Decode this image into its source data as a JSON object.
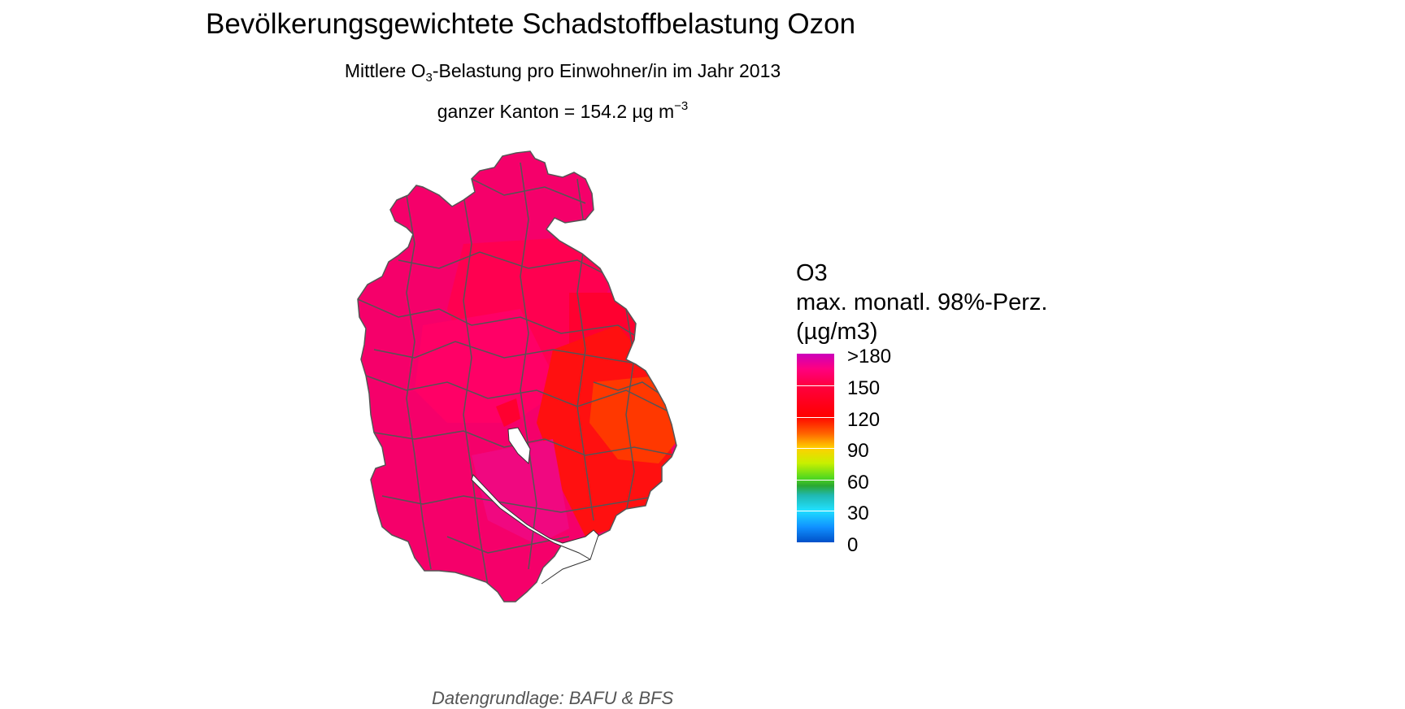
{
  "title": "Bevölkerungsgewichtete Schadstoffbelastung Ozon",
  "subtitle": {
    "line1_pre": "Mittlere O",
    "line1_sub": "3",
    "line1_post": "-Belastung pro Einwohner/in im Jahr 2013",
    "line2_pre": "ganzer Kanton = 154.2 µg m",
    "line2_sup": "−3"
  },
  "legend": {
    "title_line1": "O3",
    "title_line2": "max. monatl. 98%-Perz.",
    "title_line3": "(µg/m3)",
    "labels": [
      ">180",
      "150",
      "120",
      "90",
      "60",
      "30",
      "0"
    ],
    "colors": {
      "180": "#cc00bb",
      "150": "#ff0000",
      "120": "#ffd000",
      "90": "#50d820",
      "60": "#20e0ff",
      "30": "#1090ff",
      "0": "#0050c8"
    }
  },
  "map": {
    "region_colors": {
      "west": "#f5006a",
      "center": "#ff0066",
      "north": "#ff0050",
      "northeast": "#ff0030",
      "east": "#ff1010",
      "southeast": "#ff3800",
      "south": "#f00880",
      "lake": "#ffffff",
      "border": "#555555"
    }
  },
  "caption": "Datengrundlage: BAFU & BFS"
}
